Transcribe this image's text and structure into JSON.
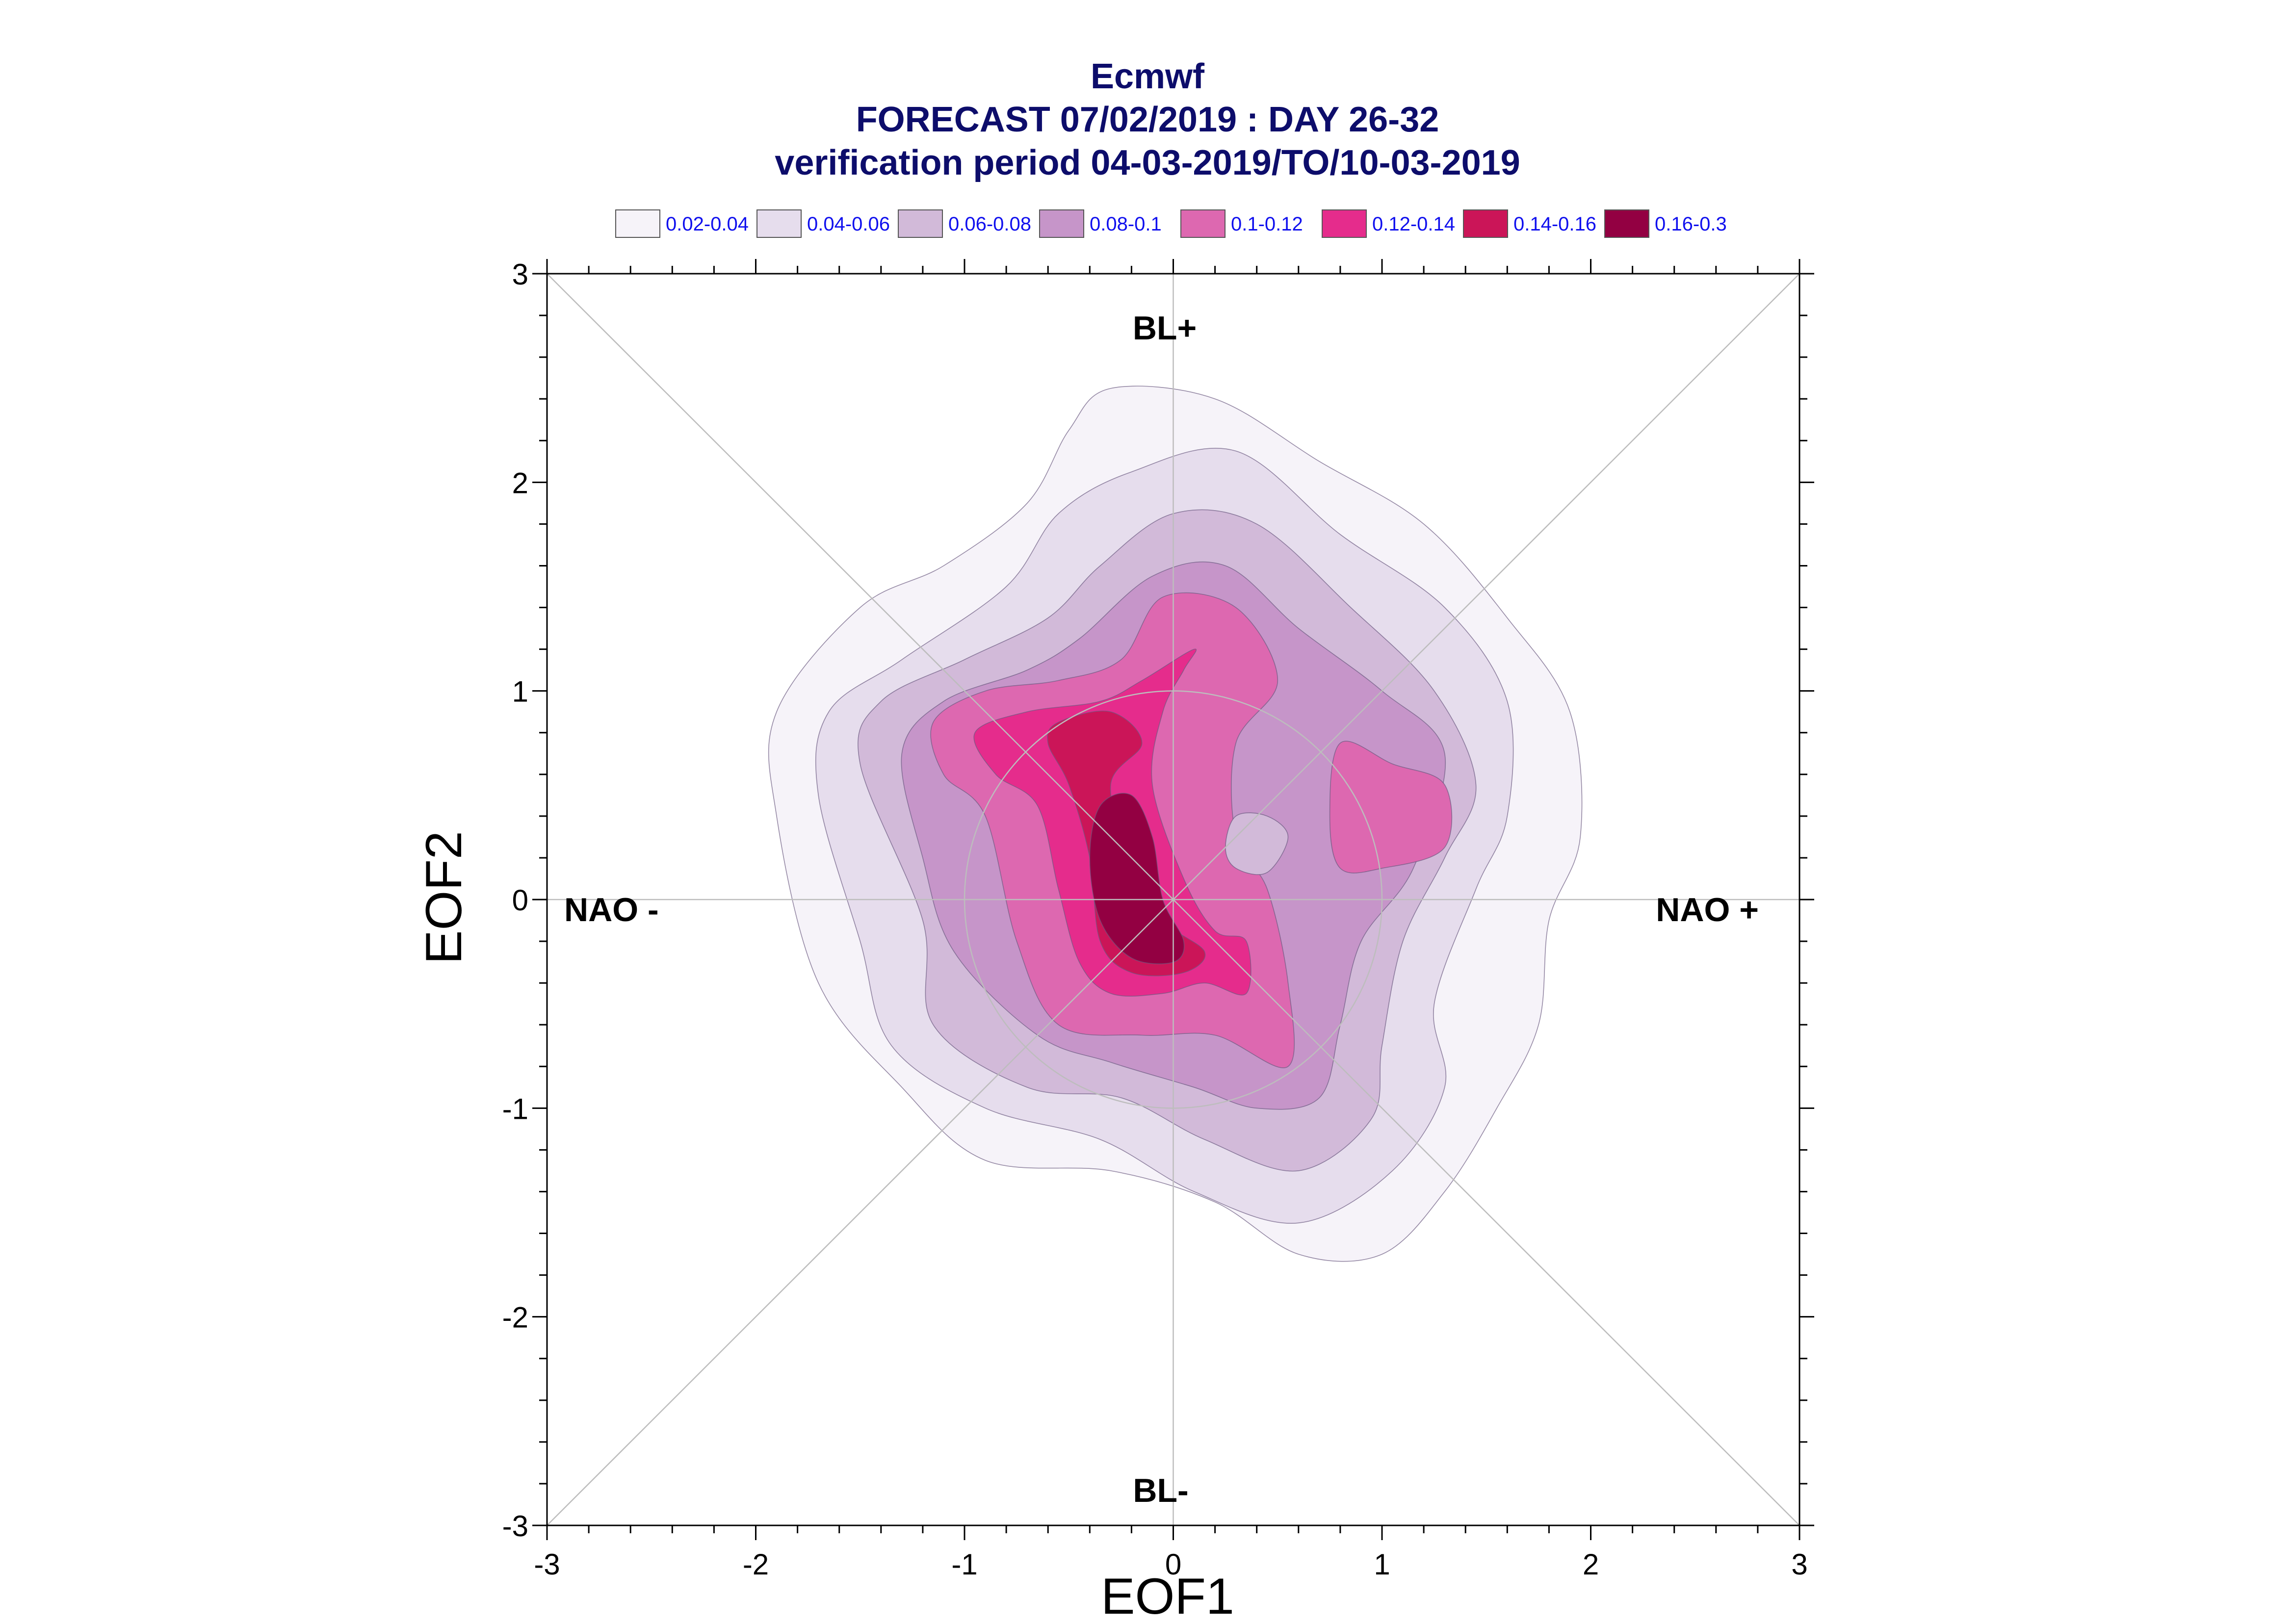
{
  "chart_data": {
    "type": "contour",
    "title": [
      "Ecmwf",
      "FORECAST 07/02/2019 : DAY 26-32",
      "verification period 04-03-2019/TO/10-03-2019"
    ],
    "xlabel": "EOF1",
    "ylabel": "EOF2",
    "xlim": [
      -3,
      3
    ],
    "ylim": [
      -3,
      3
    ],
    "xticks": [
      "-3",
      "-2",
      "-1",
      "0",
      "1",
      "2",
      "3"
    ],
    "yticks": [
      "3",
      "2",
      "1",
      "0",
      "-1",
      "-2",
      "-3"
    ],
    "regime_labels": {
      "top": "BL+",
      "bottom": "BL-",
      "left": "NAO -",
      "right": "NAO +"
    },
    "legend": [
      {
        "label": "0.02-0.04",
        "color": "#f6f3f9"
      },
      {
        "label": "0.04-0.06",
        "color": "#e6dded"
      },
      {
        "label": "0.06-0.08",
        "color": "#d2bad9"
      },
      {
        "label": "0.08-0.1",
        "color": "#c695c9"
      },
      {
        "label": "0.1-0.12",
        "color": "#dd68b0"
      },
      {
        "label": "0.12-0.14",
        "color": "#e52c8c"
      },
      {
        "label": "0.14-0.16",
        "color": "#cb1558"
      },
      {
        "label": "0.16-0.3",
        "color": "#930042"
      }
    ],
    "contours": [
      {
        "level": "0.02-0.04",
        "color": "#f6f3f9",
        "points": [
          [
            -1.9,
            0.4
          ],
          [
            -1.9,
            0.9
          ],
          [
            -1.5,
            1.4
          ],
          [
            -1.1,
            1.6
          ],
          [
            -0.7,
            1.9
          ],
          [
            -0.5,
            2.25
          ],
          [
            -0.3,
            2.45
          ],
          [
            0.2,
            2.4
          ],
          [
            0.7,
            2.1
          ],
          [
            1.2,
            1.8
          ],
          [
            1.6,
            1.35
          ],
          [
            1.9,
            0.9
          ],
          [
            1.95,
            0.3
          ],
          [
            1.8,
            -0.1
          ],
          [
            1.75,
            -0.6
          ],
          [
            1.55,
            -1.0
          ],
          [
            1.3,
            -1.4
          ],
          [
            1.0,
            -1.7
          ],
          [
            0.6,
            -1.7
          ],
          [
            0.2,
            -1.45
          ],
          [
            -0.3,
            -1.3
          ],
          [
            -0.9,
            -1.25
          ],
          [
            -1.3,
            -0.9
          ],
          [
            -1.7,
            -0.4
          ]
        ]
      },
      {
        "level": "0.04-0.06",
        "color": "#e6dded",
        "points": [
          [
            -1.7,
            0.5
          ],
          [
            -1.65,
            0.9
          ],
          [
            -1.3,
            1.15
          ],
          [
            -0.8,
            1.5
          ],
          [
            -0.55,
            1.85
          ],
          [
            -0.2,
            2.05
          ],
          [
            0.3,
            2.15
          ],
          [
            0.8,
            1.75
          ],
          [
            1.3,
            1.4
          ],
          [
            1.6,
            0.95
          ],
          [
            1.6,
            0.4
          ],
          [
            1.45,
            0.05
          ],
          [
            1.25,
            -0.5
          ],
          [
            1.3,
            -0.9
          ],
          [
            1.05,
            -1.3
          ],
          [
            0.6,
            -1.55
          ],
          [
            0.1,
            -1.4
          ],
          [
            -0.35,
            -1.15
          ],
          [
            -0.9,
            -1.0
          ],
          [
            -1.35,
            -0.7
          ],
          [
            -1.5,
            -0.2
          ]
        ]
      },
      {
        "level": "0.06-0.08",
        "color": "#d2bad9",
        "points": [
          [
            -1.5,
            0.65
          ],
          [
            -1.4,
            0.95
          ],
          [
            -1.0,
            1.15
          ],
          [
            -0.6,
            1.35
          ],
          [
            -0.35,
            1.6
          ],
          [
            0.0,
            1.85
          ],
          [
            0.4,
            1.8
          ],
          [
            0.85,
            1.4
          ],
          [
            1.25,
            1.0
          ],
          [
            1.45,
            0.55
          ],
          [
            1.3,
            0.2
          ],
          [
            1.1,
            -0.2
          ],
          [
            1.0,
            -0.7
          ],
          [
            0.95,
            -1.05
          ],
          [
            0.6,
            -1.3
          ],
          [
            0.15,
            -1.15
          ],
          [
            -0.25,
            -0.95
          ],
          [
            -0.7,
            -0.9
          ],
          [
            -1.15,
            -0.6
          ],
          [
            -1.2,
            -0.1
          ]
        ]
      },
      {
        "level": "0.08-0.1",
        "color": "#c695c9",
        "points": [
          [
            -1.3,
            0.7
          ],
          [
            -1.1,
            0.95
          ],
          [
            -0.7,
            1.1
          ],
          [
            -0.45,
            1.25
          ],
          [
            -0.1,
            1.55
          ],
          [
            0.25,
            1.6
          ],
          [
            0.6,
            1.3
          ],
          [
            1.0,
            1.0
          ],
          [
            1.3,
            0.7
          ],
          [
            1.15,
            0.15
          ],
          [
            0.9,
            -0.2
          ],
          [
            0.8,
            -0.6
          ],
          [
            0.7,
            -0.95
          ],
          [
            0.4,
            -1.0
          ],
          [
            0.1,
            -0.9
          ],
          [
            -0.3,
            -0.78
          ],
          [
            -0.65,
            -0.65
          ],
          [
            -1.05,
            -0.25
          ],
          [
            -1.2,
            0.2
          ]
        ]
      },
      {
        "level": "0.1-0.12",
        "color": "#dd68b0",
        "points": [
          [
            -1.15,
            0.85
          ],
          [
            -0.9,
            1.0
          ],
          [
            -0.55,
            1.05
          ],
          [
            -0.25,
            1.15
          ],
          [
            -0.05,
            1.45
          ],
          [
            0.3,
            1.4
          ],
          [
            0.5,
            1.05
          ],
          [
            0.3,
            0.75
          ],
          [
            0.3,
            0.3
          ],
          [
            0.45,
            0.05
          ],
          [
            0.55,
            -0.4
          ],
          [
            0.55,
            -0.8
          ],
          [
            0.2,
            -0.65
          ],
          [
            -0.15,
            -0.65
          ],
          [
            -0.55,
            -0.6
          ],
          [
            -0.75,
            -0.2
          ],
          [
            -0.9,
            0.4
          ],
          [
            -1.1,
            0.6
          ]
        ]
      },
      {
        "level": "0.1-0.12",
        "color": "#dd68b0",
        "points": [
          [
            0.8,
            0.75
          ],
          [
            1.05,
            0.65
          ],
          [
            1.3,
            0.55
          ],
          [
            1.3,
            0.25
          ],
          [
            1.0,
            0.15
          ],
          [
            0.8,
            0.15
          ],
          [
            0.75,
            0.4
          ]
        ]
      },
      {
        "level": "0.06-0.08",
        "color": "#d2bad9",
        "points": [
          [
            0.3,
            0.4
          ],
          [
            0.45,
            0.4
          ],
          [
            0.55,
            0.3
          ],
          [
            0.45,
            0.13
          ],
          [
            0.3,
            0.15
          ],
          [
            0.25,
            0.25
          ]
        ]
      },
      {
        "level": "0.12-0.14",
        "color": "#e52c8c",
        "points": [
          [
            -0.95,
            0.8
          ],
          [
            -0.7,
            0.9
          ],
          [
            -0.35,
            0.95
          ],
          [
            -0.15,
            1.05
          ],
          [
            0.1,
            1.2
          ],
          [
            0.05,
            1.1
          ],
          [
            -0.05,
            0.9
          ],
          [
            -0.1,
            0.55
          ],
          [
            0.05,
            0.1
          ],
          [
            0.2,
            -0.15
          ],
          [
            0.35,
            -0.2
          ],
          [
            0.35,
            -0.45
          ],
          [
            0.15,
            -0.4
          ],
          [
            -0.05,
            -0.45
          ],
          [
            -0.3,
            -0.45
          ],
          [
            -0.45,
            -0.3
          ],
          [
            -0.55,
            0.05
          ],
          [
            -0.65,
            0.45
          ],
          [
            -0.85,
            0.6
          ]
        ]
      },
      {
        "level": "0.14-0.16",
        "color": "#cb1558",
        "points": [
          [
            -0.55,
            0.85
          ],
          [
            -0.3,
            0.9
          ],
          [
            -0.15,
            0.75
          ],
          [
            -0.3,
            0.55
          ],
          [
            -0.2,
            0.15
          ],
          [
            -0.05,
            -0.1
          ],
          [
            0.15,
            -0.25
          ],
          [
            0.05,
            -0.35
          ],
          [
            -0.2,
            -0.35
          ],
          [
            -0.35,
            -0.2
          ],
          [
            -0.4,
            0.2
          ],
          [
            -0.5,
            0.55
          ],
          [
            -0.6,
            0.75
          ]
        ]
      },
      {
        "level": "0.16-0.3",
        "color": "#930042",
        "points": [
          [
            -0.35,
            0.45
          ],
          [
            -0.2,
            0.5
          ],
          [
            -0.1,
            0.3
          ],
          [
            -0.05,
            0.0
          ],
          [
            0.05,
            -0.2
          ],
          [
            0.0,
            -0.3
          ],
          [
            -0.2,
            -0.28
          ],
          [
            -0.35,
            -0.1
          ],
          [
            -0.4,
            0.2
          ]
        ]
      }
    ]
  }
}
